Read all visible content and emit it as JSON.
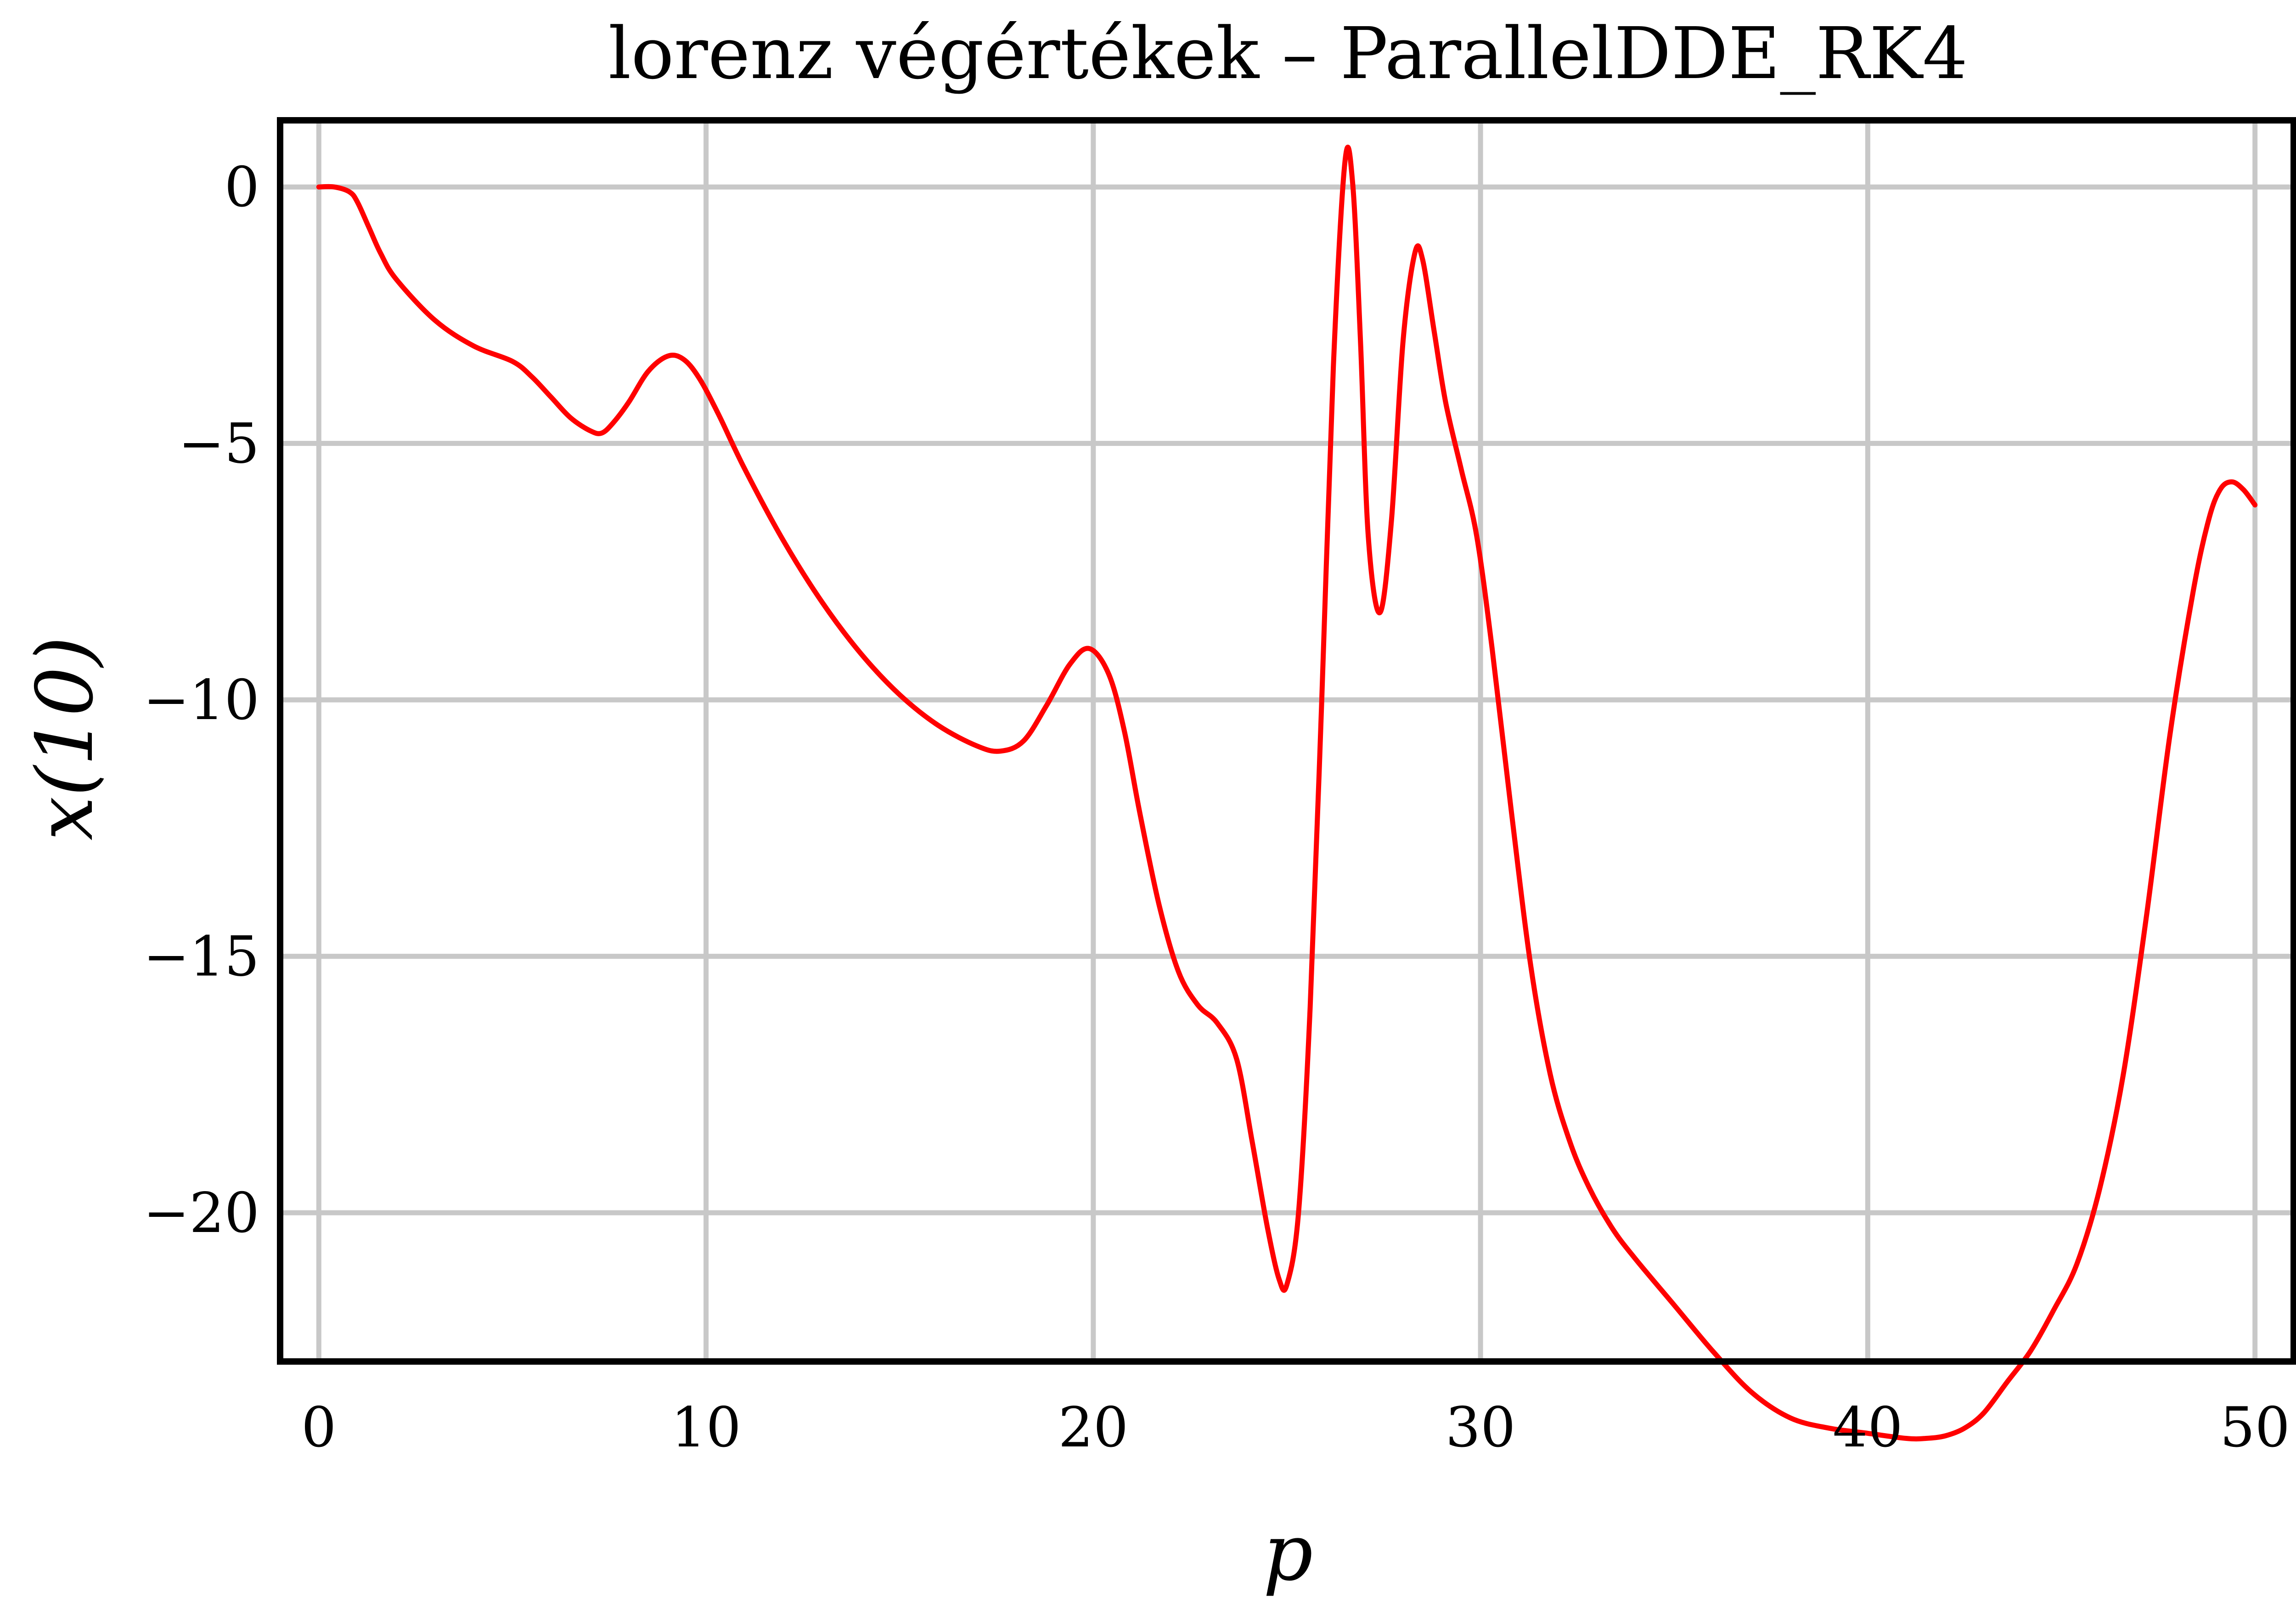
{
  "chart_data": {
    "type": "line",
    "title": "lorenz végértékek – ParallelDDE_RK4",
    "xlabel": "p",
    "ylabel": "x(10)",
    "xlim": [
      -1,
      51
    ],
    "ylim": [
      -22.9,
      1.3
    ],
    "xticks": [
      0,
      10,
      20,
      30,
      40,
      50
    ],
    "xtick_labels": [
      "0",
      "10",
      "20",
      "30",
      "40",
      "50"
    ],
    "yticks": [
      0,
      -5,
      -10,
      -15,
      -20
    ],
    "ytick_labels": [
      "0",
      "−5",
      "−10",
      "−15",
      "−20"
    ],
    "grid": true,
    "legend": "none",
    "colors": {
      "line": "#ff0000",
      "grid": "#c8c8c8",
      "frame": "#000000"
    },
    "series": [
      {
        "x": [
          0,
          0.4,
          0.8,
          1.0,
          1.3,
          1.6,
          2,
          3,
          4,
          5,
          5.5,
          6,
          6.5,
          7,
          7.3,
          7.6,
          8,
          8.5,
          9,
          9.4,
          9.8,
          10.3,
          11,
          12,
          13,
          14,
          15,
          16,
          17,
          17.6,
          18.2,
          18.8,
          19.4,
          19.9,
          20.4,
          20.8,
          21.2,
          21.7,
          22.2,
          22.7,
          23.2,
          23.7,
          24.1,
          24.5,
          24.8,
          25.0,
          25.3,
          25.6,
          25.9,
          26.2,
          26.5,
          26.7,
          26.9,
          27.1,
          27.4,
          27.7,
          28.0,
          28.3,
          28.5,
          28.8,
          29.1,
          29.5,
          29.9,
          30.3,
          30.8,
          31.3,
          31.8,
          32.3,
          32.8,
          33.4,
          34,
          35,
          36,
          37,
          38,
          39,
          40,
          41,
          41.5,
          42,
          42.5,
          43,
          43.6,
          44.2,
          44.8,
          45.4,
          46,
          46.6,
          47.2,
          47.8,
          48.4,
          48.8,
          49.1,
          49.4,
          49.7,
          50
        ],
        "y": [
          0,
          0,
          -0.1,
          -0.3,
          -0.8,
          -1.3,
          -1.8,
          -2.6,
          -3.1,
          -3.4,
          -3.7,
          -4.1,
          -4.5,
          -4.75,
          -4.8,
          -4.6,
          -4.2,
          -3.6,
          -3.3,
          -3.35,
          -3.7,
          -4.4,
          -5.5,
          -6.9,
          -8.1,
          -9.1,
          -9.9,
          -10.5,
          -10.9,
          -11.0,
          -10.8,
          -10.1,
          -9.3,
          -9.0,
          -9.5,
          -10.6,
          -12.2,
          -14.0,
          -15.3,
          -15.95,
          -16.3,
          -17.0,
          -18.6,
          -20.3,
          -21.3,
          -21.4,
          -20.0,
          -16.0,
          -10.0,
          -3.5,
          0.5,
          0.05,
          -3.0,
          -6.8,
          -8.3,
          -6.5,
          -3.0,
          -1.3,
          -1.4,
          -2.8,
          -4.2,
          -5.5,
          -6.8,
          -9.0,
          -12.2,
          -15.2,
          -17.3,
          -18.6,
          -19.5,
          -20.3,
          -20.9,
          -21.8,
          -22.7,
          -23.5,
          -24.0,
          -24.2,
          -24.3,
          -24.4,
          -24.4,
          -24.35,
          -24.2,
          -23.9,
          -23.3,
          -22.7,
          -21.9,
          -21.0,
          -19.5,
          -17.3,
          -14.2,
          -10.7,
          -7.9,
          -6.5,
          -5.9,
          -5.75,
          -5.9,
          -6.2
        ]
      }
    ]
  }
}
